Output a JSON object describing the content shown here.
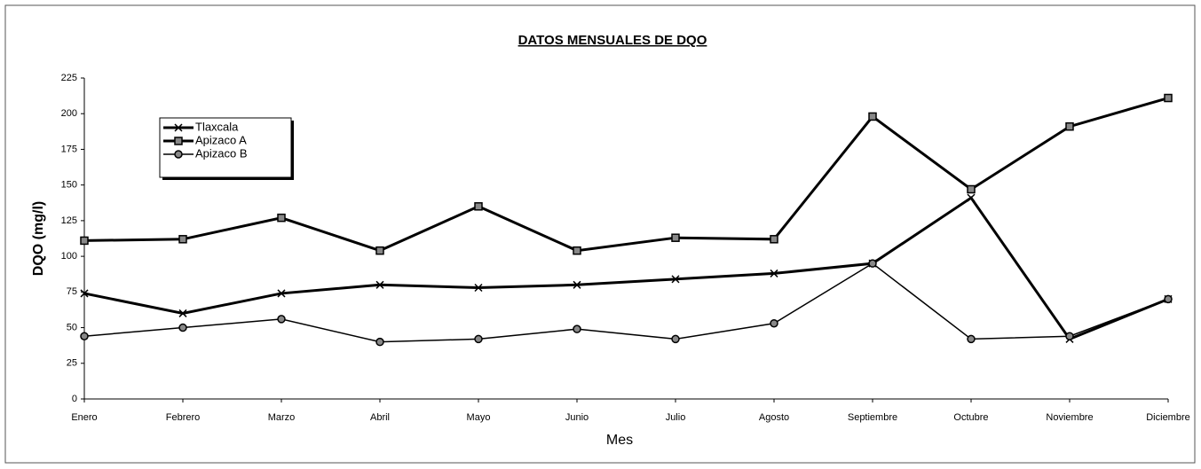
{
  "chart_data": {
    "type": "line",
    "title": "DATOS MENSUALES DE  DQO",
    "y_label": "DQO  (mg/l)",
    "x_label": "Mes",
    "categories": [
      "Enero",
      "Febrero",
      "Marzo",
      "Abril",
      "Mayo",
      "Junio",
      "Julio",
      "Agosto",
      "Septiembre",
      "Octubre",
      "Noviembre",
      "Diciembre"
    ],
    "series": [
      {
        "name": "Tlaxcala",
        "color": "#000000",
        "marker": "x",
        "line_width": 3,
        "values": [
          74,
          60,
          74,
          80,
          78,
          80,
          84,
          88,
          95,
          141,
          42,
          70
        ]
      },
      {
        "name": "Apizaco A",
        "color": "#000000",
        "marker": "square",
        "line_width": 3,
        "values": [
          111,
          112,
          127,
          104,
          135,
          104,
          113,
          112,
          198,
          147,
          191,
          211
        ]
      },
      {
        "name": "Apizaco B",
        "color": "#000000",
        "marker": "circle",
        "line_width": 1.5,
        "values": [
          44,
          50,
          56,
          40,
          42,
          49,
          42,
          53,
          95,
          42,
          44,
          70
        ]
      }
    ],
    "ylim": [
      0,
      225
    ],
    "yticks": [
      0,
      25,
      50,
      75,
      100,
      125,
      150,
      175,
      200,
      225
    ],
    "grid": false,
    "legend": "upper left"
  }
}
